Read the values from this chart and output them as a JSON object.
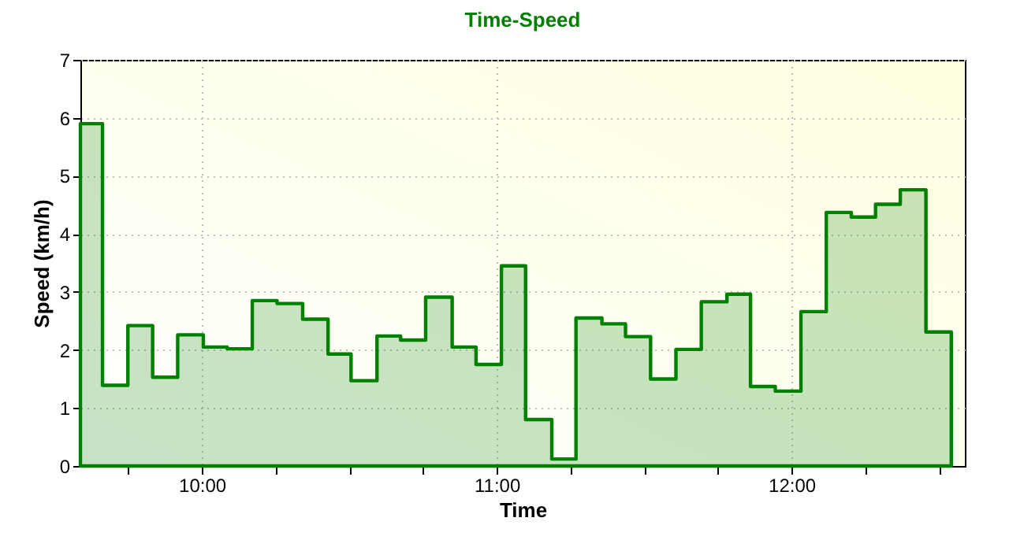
{
  "chart_data": {
    "type": "area",
    "title": "Time-Speed",
    "xlabel": "Time",
    "ylabel": "Speed (km/h)",
    "x": [
      9.588,
      9.663,
      9.749,
      9.833,
      9.918,
      10.005,
      10.086,
      10.171,
      10.255,
      10.342,
      10.428,
      10.506,
      10.594,
      10.674,
      10.759,
      10.849,
      10.93,
      11.016,
      11.098,
      11.187,
      11.269,
      11.357,
      11.437,
      11.522,
      11.608,
      11.694,
      11.781,
      11.861,
      11.945,
      12.032,
      12.118,
      12.203,
      12.285,
      12.369,
      12.456,
      12.542
    ],
    "series": [
      {
        "color": "#008000",
        "values": [
          5.9,
          1.39,
          2.42,
          1.53,
          2.26,
          2.05,
          2.02,
          2.85,
          2.8,
          2.53,
          1.93,
          1.47,
          2.24,
          2.17,
          2.91,
          2.05,
          1.75,
          3.45,
          0.8,
          0.12,
          2.55,
          2.45,
          2.23,
          1.5,
          2.01,
          2.83,
          2.96,
          1.37,
          1.29,
          2.66,
          4.37,
          4.29,
          4.51,
          4.76,
          2.31,
          2.31
        ]
      }
    ],
    "xlim": [
      9.588,
      12.588
    ],
    "xticks": [
      {
        "value": 9.75,
        "label": null
      },
      {
        "value": 10,
        "label": "10:00"
      },
      {
        "value": 10.25,
        "label": null
      },
      {
        "value": 10.5,
        "label": null
      },
      {
        "value": 10.75,
        "label": null
      },
      {
        "value": 11,
        "label": "11:00"
      },
      {
        "value": 11.25,
        "label": null
      },
      {
        "value": 11.5,
        "label": null
      },
      {
        "value": 11.75,
        "label": null
      },
      {
        "value": 12,
        "label": "12:00"
      },
      {
        "value": 12.25,
        "label": null
      },
      {
        "value": 12.5,
        "label": null
      }
    ],
    "ylim": [
      0,
      7
    ],
    "yticks": [
      0,
      1,
      2,
      3,
      4,
      5,
      6,
      7
    ],
    "grid": true,
    "line_style": "solid"
  }
}
